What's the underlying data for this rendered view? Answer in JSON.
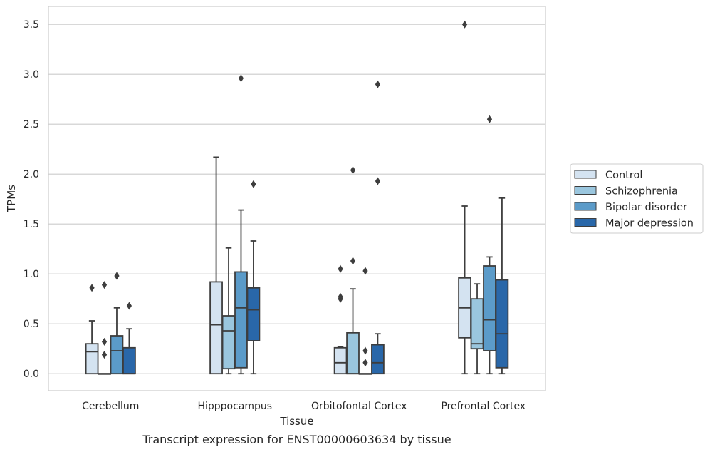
{
  "caption": "Transcript expression for ENST00000603634 by tissue",
  "chart_data": {
    "type": "box",
    "title": "",
    "xlabel": "Tissue",
    "ylabel": "TPMs",
    "ylim": [
      -0.17,
      3.68
    ],
    "yticks": [
      0.0,
      0.5,
      1.0,
      1.5,
      2.0,
      2.5,
      3.0,
      3.5
    ],
    "ytick_labels": [
      "0.0",
      "0.5",
      "1.0",
      "1.5",
      "2.0",
      "2.5",
      "3.0",
      "3.5"
    ],
    "categories": [
      "Cerebellum",
      "Hipppocampus",
      "Orbitofontal Cortex",
      "Prefrontal Cortex"
    ],
    "grid": "horizontal",
    "legend_position": "right, outside plot",
    "series": [
      {
        "name": "Control",
        "color": "#d4e3f1",
        "boxes": [
          {
            "q1": 0.0,
            "median": 0.22,
            "q3": 0.3,
            "whisker_low": 0.0,
            "whisker_high": 0.53,
            "outliers": [
              0.86
            ]
          },
          {
            "q1": 0.0,
            "median": 0.49,
            "q3": 0.92,
            "whisker_low": 0.0,
            "whisker_high": 2.17,
            "outliers": []
          },
          {
            "q1": 0.0,
            "median": 0.11,
            "q3": 0.26,
            "whisker_low": 0.0,
            "whisker_high": 0.27,
            "outliers": [
              0.75,
              0.77,
              1.05
            ]
          },
          {
            "q1": 0.36,
            "median": 0.66,
            "q3": 0.96,
            "whisker_low": 0.0,
            "whisker_high": 1.68,
            "outliers": [
              3.5
            ]
          }
        ]
      },
      {
        "name": "Schizophrenia",
        "color": "#9ac6de",
        "boxes": [
          {
            "q1": 0.0,
            "median": 0.0,
            "q3": 0.0,
            "whisker_low": 0.0,
            "whisker_high": 0.0,
            "outliers": [
              0.19,
              0.32,
              0.89
            ]
          },
          {
            "q1": 0.05,
            "median": 0.43,
            "q3": 0.58,
            "whisker_low": 0.0,
            "whisker_high": 1.26,
            "outliers": []
          },
          {
            "q1": 0.0,
            "median": 0.0,
            "q3": 0.41,
            "whisker_low": 0.0,
            "whisker_high": 0.85,
            "outliers": [
              1.13,
              2.04
            ]
          },
          {
            "q1": 0.25,
            "median": 0.3,
            "q3": 0.75,
            "whisker_low": 0.0,
            "whisker_high": 0.9,
            "outliers": []
          }
        ]
      },
      {
        "name": "Bipolar disorder",
        "color": "#5b9bc9",
        "boxes": [
          {
            "q1": 0.0,
            "median": 0.23,
            "q3": 0.38,
            "whisker_low": 0.0,
            "whisker_high": 0.66,
            "outliers": [
              0.98
            ]
          },
          {
            "q1": 0.06,
            "median": 0.66,
            "q3": 1.02,
            "whisker_low": 0.0,
            "whisker_high": 1.64,
            "outliers": [
              2.96
            ]
          },
          {
            "q1": 0.0,
            "median": 0.0,
            "q3": 0.0,
            "whisker_low": 0.0,
            "whisker_high": 0.0,
            "outliers": [
              0.11,
              0.23,
              1.03
            ]
          },
          {
            "q1": 0.23,
            "median": 0.54,
            "q3": 1.08,
            "whisker_low": 0.0,
            "whisker_high": 1.17,
            "outliers": [
              2.55
            ]
          }
        ]
      },
      {
        "name": "Major depression",
        "color": "#2967a9",
        "boxes": [
          {
            "q1": 0.0,
            "median": 0.0,
            "q3": 0.26,
            "whisker_low": 0.0,
            "whisker_high": 0.45,
            "outliers": [
              0.68
            ]
          },
          {
            "q1": 0.33,
            "median": 0.64,
            "q3": 0.86,
            "whisker_low": 0.0,
            "whisker_high": 1.33,
            "outliers": [
              1.9
            ]
          },
          {
            "q1": 0.0,
            "median": 0.11,
            "q3": 0.29,
            "whisker_low": 0.0,
            "whisker_high": 0.4,
            "outliers": [
              1.93,
              2.9
            ]
          },
          {
            "q1": 0.06,
            "median": 0.4,
            "q3": 0.94,
            "whisker_low": 0.0,
            "whisker_high": 1.76,
            "outliers": []
          }
        ]
      }
    ]
  }
}
